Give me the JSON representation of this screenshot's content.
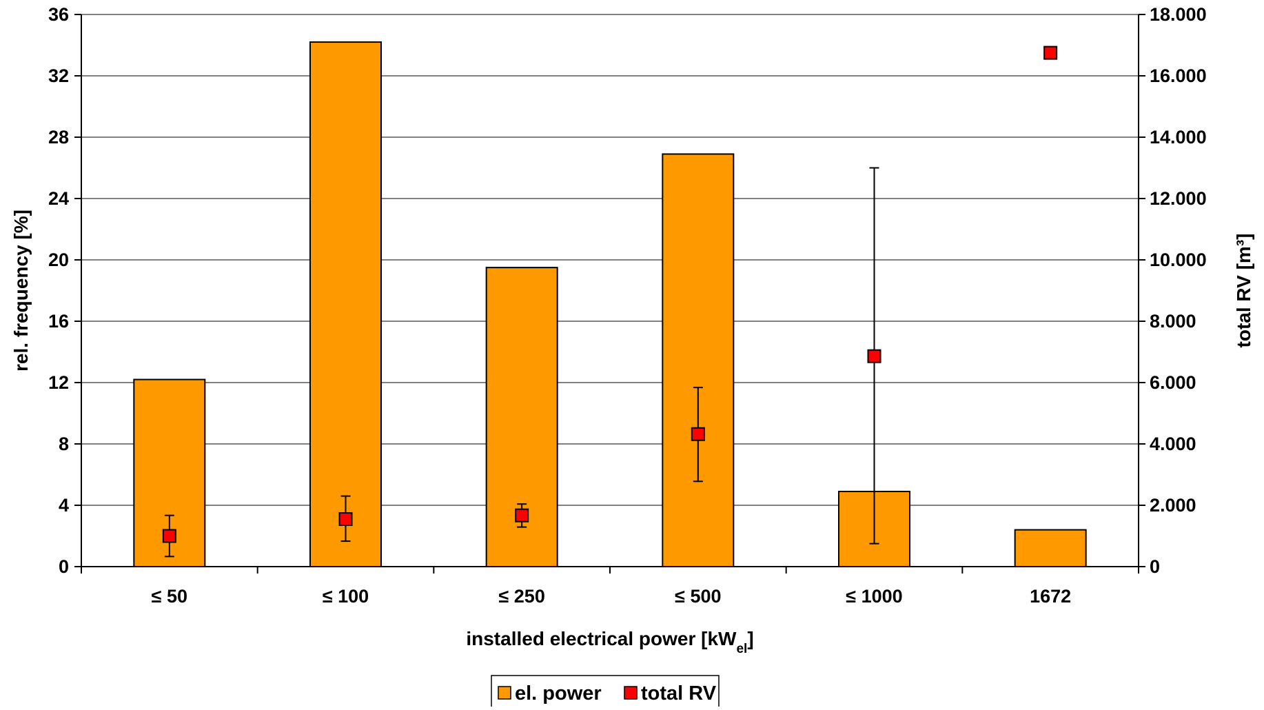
{
  "chart_data": {
    "type": "bar",
    "categories": [
      "≤ 50",
      "≤ 100",
      "≤ 250",
      "≤ 500",
      "≤ 1000",
      "1672"
    ],
    "xlabel_main": "installed electrical power [kW",
    "xlabel_sub": "el",
    "xlabel_end": "]",
    "ylabel": "rel. frequency [%]",
    "y2label": "total RV [m³]",
    "ylim": [
      0,
      36
    ],
    "yticks": [
      "0",
      "4",
      "8",
      "12",
      "16",
      "20",
      "24",
      "28",
      "32",
      "36"
    ],
    "y2lim": [
      0,
      18000
    ],
    "y2ticks": [
      "0",
      "2.000",
      "4.000",
      "6.000",
      "8.000",
      "10.000",
      "12.000",
      "14.000",
      "16.000",
      "18.000"
    ],
    "grid": true,
    "legend_position": "bottom-center",
    "series": [
      {
        "name": "el. power",
        "kind": "bar",
        "axis": "left",
        "color": "#FF9900",
        "values": [
          12.2,
          34.2,
          19.5,
          26.9,
          4.9,
          2.4
        ]
      },
      {
        "name": "total RV",
        "kind": "scatter",
        "axis": "right",
        "color": "#FF0000",
        "values": [
          1000,
          1550,
          1670,
          4320,
          6860,
          16750
        ],
        "error_low": [
          330,
          830,
          1290,
          2780,
          750,
          null
        ],
        "error_high": [
          1670,
          2300,
          2040,
          5840,
          13000,
          null
        ]
      }
    ]
  }
}
